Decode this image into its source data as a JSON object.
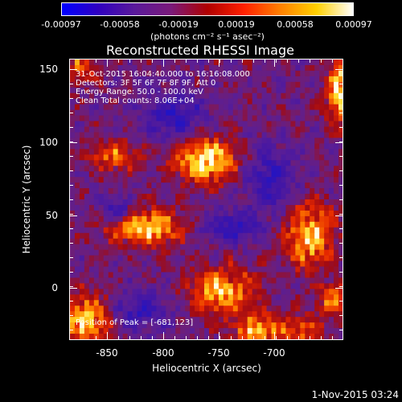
{
  "colorbar": {
    "ticks": [
      "-0.00097",
      "-0.00058",
      "-0.00019",
      "0.00019",
      "0.00058",
      "0.00097"
    ],
    "units": "(photons cm⁻² s⁻¹ asec⁻²)",
    "colors": [
      "#0000ff",
      "#3000c0",
      "#5a1a9a",
      "#7a1a7a",
      "#b00000",
      "#ff2000",
      "#ff8000",
      "#ffd000",
      "#ffffff"
    ]
  },
  "plot": {
    "title": "Reconstructed RHESSI Image",
    "xlabel": "Heliocentric X (arcsec)",
    "ylabel": "Heliocentric Y (arcsec)",
    "xticks": [
      "-850",
      "-800",
      "-750",
      "-700"
    ],
    "yticks": [
      "150",
      "100",
      "50",
      "0"
    ],
    "info_lines": [
      "31-Oct-2015 16:04:40.000 to 16:16:08.000",
      "Detectors: 3F 5F 6F 7F 8F 9F, Att 0",
      "Energy Range: 50.0 - 100.0 keV",
      "Clean   Total counts: 8.06E+04"
    ],
    "peak_label": "Position of Peak = [-681,123]"
  },
  "footer": {
    "timestamp": "1-Nov-2015 03:24"
  },
  "chart_data": {
    "type": "heatmap",
    "title": "Reconstructed RHESSI Image",
    "xlabel": "Heliocentric X (arcsec)",
    "ylabel": "Heliocentric Y (arcsec)",
    "xlim": [
      -870,
      -675
    ],
    "ylim": [
      -38,
      155
    ],
    "colorbar_range": [
      -0.00097,
      0.00097
    ],
    "peak": [
      -681,
      123
    ]
  }
}
